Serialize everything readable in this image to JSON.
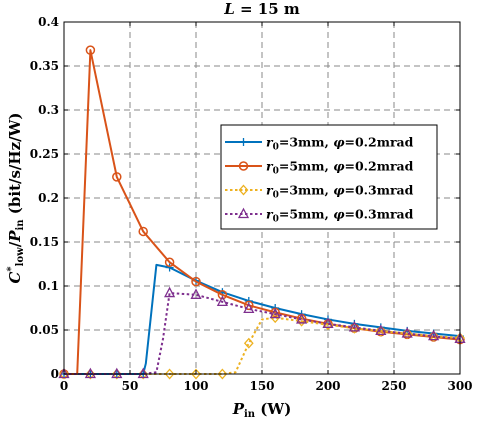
{
  "chart_data": {
    "type": "line",
    "title": "L = 15 m",
    "xlabel": "P_in (W)",
    "ylabel": "C*_low / P_in  (bit/s/Hz/W)",
    "xlim": [
      0,
      300
    ],
    "ylim": [
      0,
      0.4
    ],
    "xticks": [
      0,
      50,
      100,
      150,
      200,
      250,
      300
    ],
    "yticks": [
      0,
      0.05,
      0.1,
      0.15,
      0.2,
      0.25,
      0.3,
      0.35,
      0.4
    ],
    "ytick_labels": [
      "0",
      "0.05",
      "0.1",
      "0.15",
      "0.2",
      "0.25",
      "0.3",
      "0.35",
      "0.4"
    ],
    "grid": true,
    "legend_position": "center-right",
    "series": [
      {
        "name": "r0=3mm, φ=0.2mrad",
        "color": "#0072BD",
        "marker": "plus",
        "dashed": false,
        "x": [
          0,
          20,
          40,
          60,
          62,
          70,
          80,
          100,
          120,
          140,
          160,
          180,
          200,
          220,
          240,
          260,
          280,
          300
        ],
        "y": [
          0,
          0,
          0,
          0,
          0.012,
          0.124,
          0.121,
          0.106,
          0.093,
          0.083,
          0.075,
          0.068,
          0.062,
          0.057,
          0.053,
          0.049,
          0.046,
          0.043
        ],
        "marker_x": [
          0,
          20,
          40,
          60,
          80,
          100,
          120,
          140,
          160,
          180,
          200,
          220,
          240,
          260,
          280,
          300
        ]
      },
      {
        "name": "r0=5mm, φ=0.2mrad",
        "color": "#D95319",
        "marker": "circle",
        "dashed": false,
        "x": [
          0,
          10,
          20,
          40,
          60,
          80,
          100,
          120,
          140,
          160,
          180,
          200,
          220,
          240,
          260,
          280,
          300
        ],
        "y": [
          0,
          0,
          0.368,
          0.224,
          0.162,
          0.127,
          0.105,
          0.09,
          0.078,
          0.07,
          0.063,
          0.057,
          0.052,
          0.048,
          0.045,
          0.042,
          0.039
        ],
        "marker_x": [
          0,
          20,
          40,
          60,
          80,
          100,
          120,
          140,
          160,
          180,
          200,
          220,
          240,
          260,
          280,
          300
        ]
      },
      {
        "name": "r0=3mm, φ=0.3mrad",
        "color": "#EDB120",
        "marker": "diamond",
        "dashed": true,
        "x": [
          0,
          20,
          40,
          60,
          80,
          100,
          120,
          130,
          140,
          150,
          160,
          180,
          200,
          220,
          240,
          260,
          280,
          300
        ],
        "y": [
          0,
          0,
          0,
          0,
          0,
          0,
          0,
          0.002,
          0.035,
          0.062,
          0.064,
          0.06,
          0.056,
          0.052,
          0.049,
          0.046,
          0.043,
          0.041
        ],
        "marker_x": [
          0,
          20,
          40,
          60,
          80,
          100,
          120,
          140,
          160,
          180,
          200,
          220,
          240,
          260,
          280,
          300
        ]
      },
      {
        "name": "r0=5mm, φ=0.3mrad",
        "color": "#7E2F8E",
        "marker": "triangle",
        "dashed": true,
        "x": [
          0,
          20,
          40,
          60,
          70,
          75,
          80,
          100,
          120,
          140,
          160,
          180,
          200,
          220,
          240,
          260,
          280,
          300
        ],
        "y": [
          0,
          0,
          0,
          0,
          0.002,
          0.04,
          0.092,
          0.09,
          0.082,
          0.074,
          0.068,
          0.062,
          0.057,
          0.053,
          0.049,
          0.046,
          0.043,
          0.04
        ],
        "marker_x": [
          0,
          20,
          40,
          60,
          80,
          100,
          120,
          140,
          160,
          180,
          200,
          220,
          240,
          260,
          280,
          300
        ]
      }
    ]
  }
}
